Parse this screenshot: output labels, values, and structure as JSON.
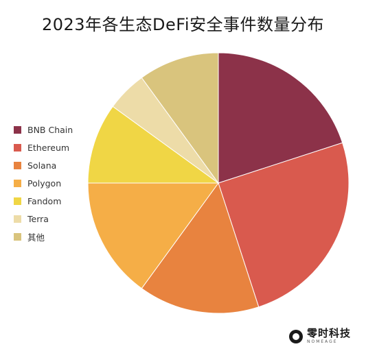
{
  "chart_data": {
    "type": "pie",
    "title": "2023年各生态DeFi安全事件数量分布",
    "categories": [
      "BNB Chain",
      "Ethereum",
      "Solana",
      "Polygon",
      "Fandom",
      "Terra",
      "其他"
    ],
    "values": [
      20,
      25,
      15,
      15,
      10,
      5,
      10
    ],
    "colors": [
      "#8c3249",
      "#d95a4e",
      "#e8833f",
      "#f5ae47",
      "#f0d645",
      "#eddca8",
      "#d9c47d"
    ],
    "start_angle_deg": 0,
    "direction": "clockwise",
    "legend_position": "left"
  },
  "watermark": {
    "name": "零时科技",
    "sub": "NOMEAGE"
  }
}
